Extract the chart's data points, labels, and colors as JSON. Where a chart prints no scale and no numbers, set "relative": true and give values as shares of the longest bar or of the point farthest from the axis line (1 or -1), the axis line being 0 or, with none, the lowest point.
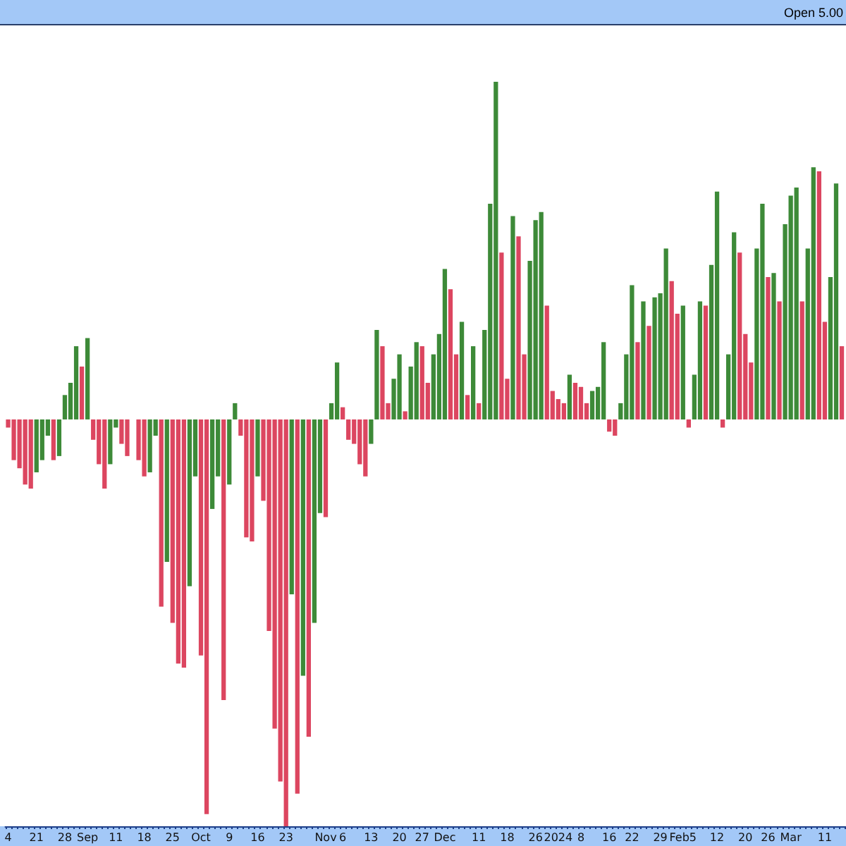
{
  "chart_data": {
    "type": "bar",
    "relative": true,
    "annotations": [
      "Open 5.00"
    ],
    "categories": [
      "4",
      null,
      null,
      null,
      null,
      "21",
      null,
      null,
      null,
      null,
      "28",
      null,
      null,
      null,
      "Sep",
      null,
      null,
      null,
      null,
      "11",
      null,
      null,
      null,
      null,
      "18",
      null,
      null,
      null,
      null,
      "25",
      null,
      null,
      null,
      null,
      "Oct",
      null,
      null,
      null,
      null,
      "9",
      null,
      null,
      null,
      null,
      "16",
      null,
      null,
      null,
      null,
      "23",
      null,
      null,
      null,
      null,
      null,
      null,
      "Nov",
      null,
      null,
      "6",
      null,
      null,
      null,
      null,
      "13",
      null,
      null,
      null,
      null,
      "20",
      null,
      null,
      null,
      "27",
      null,
      null,
      null,
      "Dec",
      null,
      null,
      null,
      null,
      null,
      "11",
      null,
      null,
      null,
      null,
      "18",
      null,
      null,
      null,
      null,
      "26",
      null,
      null,
      null,
      "2024",
      null,
      null,
      null,
      "8",
      null,
      null,
      null,
      null,
      "16",
      null,
      null,
      null,
      "22",
      null,
      null,
      null,
      null,
      "29",
      null,
      null,
      null,
      "Feb5",
      null,
      null,
      null,
      null,
      null,
      "12",
      null,
      null,
      null,
      null,
      "20",
      null,
      null,
      null,
      "26",
      null,
      null,
      null,
      "Mar",
      null,
      null,
      null,
      null,
      null,
      "11",
      null,
      null,
      null
    ],
    "values": [
      -0.02,
      -0.1,
      -0.12,
      -0.16,
      -0.17,
      -0.13,
      -0.1,
      -0.04,
      -0.1,
      -0.09,
      0.06,
      0.09,
      0.18,
      0.13,
      0.2,
      -0.05,
      -0.11,
      -0.17,
      -0.11,
      -0.02,
      -0.06,
      -0.09,
      0,
      -0.1,
      -0.14,
      -0.13,
      -0.04,
      -0.46,
      -0.35,
      -0.5,
      -0.6,
      -0.61,
      -0.41,
      -0.14,
      -0.58,
      -0.97,
      -0.22,
      -0.14,
      -0.69,
      -0.16,
      0.04,
      -0.04,
      -0.29,
      -0.3,
      -0.14,
      -0.2,
      -0.52,
      -0.76,
      -0.89,
      -1,
      -0.43,
      -0.92,
      -0.63,
      -0.78,
      -0.5,
      -0.23,
      -0.24,
      0.04,
      0.14,
      0.03,
      -0.05,
      -0.06,
      -0.11,
      -0.14,
      -0.06,
      0.22,
      0.18,
      0.04,
      0.1,
      0.16,
      0.02,
      0.13,
      0.19,
      0.18,
      0.09,
      0.16,
      0.21,
      0.37,
      0.32,
      0.16,
      0.24,
      0.06,
      0.18,
      0.04,
      0.22,
      0.53,
      0.83,
      0.41,
      0.1,
      0.5,
      0.45,
      0.16,
      0.39,
      0.49,
      0.51,
      0.28,
      0.07,
      0.05,
      0.04,
      0.11,
      0.09,
      0.08,
      0.04,
      0.07,
      0.08,
      0.19,
      -0.03,
      -0.04,
      0.04,
      0.16,
      0.33,
      0.19,
      0.29,
      0.23,
      0.3,
      0.31,
      0.42,
      0.34,
      0.26,
      0.28,
      -0.02,
      0.11,
      0.29,
      0.28,
      0.38,
      0.56,
      -0.02,
      0.16,
      0.46,
      0.41,
      0.21,
      0.14,
      0.42,
      0.53,
      0.35,
      0.36,
      0.29,
      0.48,
      0.55,
      0.57,
      0.29,
      0.42,
      0.62,
      0.61,
      0.24,
      0.35,
      0.58,
      0.18
    ],
    "colors": [
      "#dc4660",
      "#dc4660",
      "#dc4660",
      "#dc4660",
      "#dc4660",
      "#3d8a38",
      "#3d8a38",
      "#3d8a38",
      "#dc4660",
      "#3d8a38",
      "#3d8a38",
      "#3d8a38",
      "#3d8a38",
      "#dc4660",
      "#3d8a38",
      "#dc4660",
      "#dc4660",
      "#dc4660",
      "#3d8a38",
      "#3d8a38",
      "#dc4660",
      "#dc4660",
      "#3d8a38",
      "#dc4660",
      "#dc4660",
      "#3d8a38",
      "#3d8a38",
      "#dc4660",
      "#3d8a38",
      "#dc4660",
      "#dc4660",
      "#dc4660",
      "#3d8a38",
      "#3d8a38",
      "#dc4660",
      "#dc4660",
      "#3d8a38",
      "#3d8a38",
      "#dc4660",
      "#3d8a38",
      "#3d8a38",
      "#dc4660",
      "#dc4660",
      "#dc4660",
      "#3d8a38",
      "#dc4660",
      "#dc4660",
      "#dc4660",
      "#dc4660",
      "#dc4660",
      "#3d8a38",
      "#dc4660",
      "#3d8a38",
      "#dc4660",
      "#3d8a38",
      "#3d8a38",
      "#dc4660",
      "#3d8a38",
      "#3d8a38",
      "#dc4660",
      "#dc4660",
      "#dc4660",
      "#dc4660",
      "#dc4660",
      "#3d8a38",
      "#3d8a38",
      "#dc4660",
      "#dc4660",
      "#3d8a38",
      "#3d8a38",
      "#dc4660",
      "#3d8a38",
      "#3d8a38",
      "#dc4660",
      "#dc4660",
      "#3d8a38",
      "#3d8a38",
      "#3d8a38",
      "#dc4660",
      "#dc4660",
      "#3d8a38",
      "#dc4660",
      "#3d8a38",
      "#dc4660",
      "#3d8a38",
      "#3d8a38",
      "#3d8a38",
      "#dc4660",
      "#dc4660",
      "#3d8a38",
      "#dc4660",
      "#dc4660",
      "#3d8a38",
      "#3d8a38",
      "#3d8a38",
      "#dc4660",
      "#dc4660",
      "#dc4660",
      "#dc4660",
      "#3d8a38",
      "#dc4660",
      "#dc4660",
      "#dc4660",
      "#3d8a38",
      "#3d8a38",
      "#3d8a38",
      "#dc4660",
      "#dc4660",
      "#3d8a38",
      "#3d8a38",
      "#3d8a38",
      "#dc4660",
      "#3d8a38",
      "#dc4660",
      "#3d8a38",
      "#3d8a38",
      "#3d8a38",
      "#dc4660",
      "#dc4660",
      "#3d8a38",
      "#dc4660",
      "#3d8a38",
      "#3d8a38",
      "#dc4660",
      "#3d8a38",
      "#3d8a38",
      "#dc4660",
      "#3d8a38",
      "#3d8a38",
      "#dc4660",
      "#dc4660",
      "#dc4660",
      "#3d8a38",
      "#3d8a38",
      "#dc4660",
      "#3d8a38",
      "#dc4660",
      "#3d8a38",
      "#3d8a38",
      "#3d8a38",
      "#dc4660",
      "#3d8a38",
      "#3d8a38",
      "#dc4660",
      "#dc4660",
      "#3d8a38",
      "#3d8a38",
      "#dc4660"
    ]
  }
}
